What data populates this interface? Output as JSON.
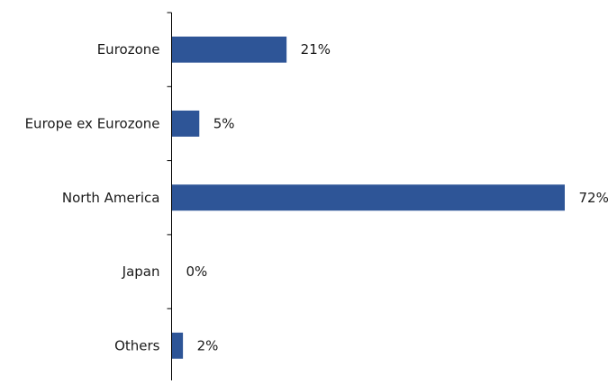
{
  "chart_data": {
    "type": "bar",
    "orientation": "horizontal",
    "title": "",
    "xlabel": "",
    "ylabel": "",
    "categories": [
      "Eurozone",
      "Europe ex Eurozone",
      "North America",
      "Japan",
      "Others"
    ],
    "values": [
      21,
      5,
      72,
      0,
      2
    ],
    "value_labels": [
      "21%",
      "5%",
      "72%",
      "0%",
      "2%"
    ],
    "unit": "%",
    "xlim": [
      0,
      72
    ],
    "grid": false,
    "legend": "none",
    "bar_color": "#2E5597",
    "axis_color": "#000000"
  }
}
